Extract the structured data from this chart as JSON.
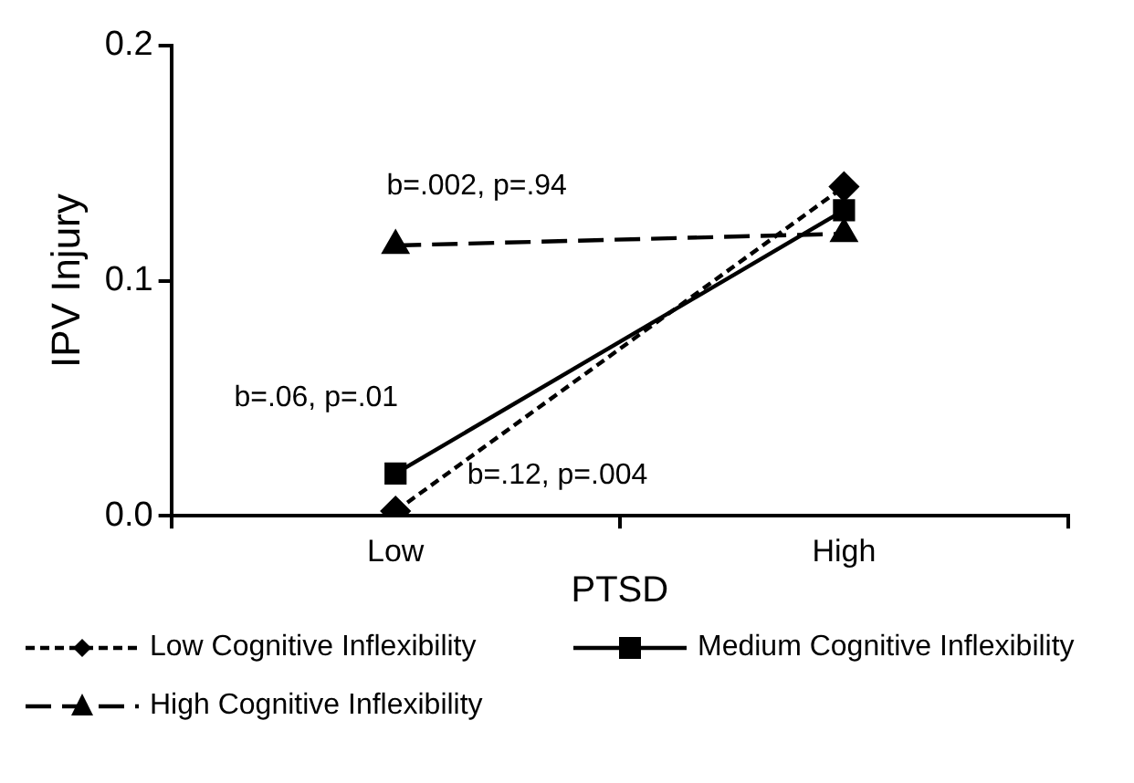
{
  "chart_data": {
    "type": "line",
    "xlabel": "PTSD",
    "ylabel": "IPV Injury",
    "categories": [
      "Low",
      "High"
    ],
    "ylim": [
      0,
      0.2
    ],
    "yticks": [
      {
        "value": 0,
        "label": "0.0"
      },
      0.1,
      0.2
    ],
    "grid": false,
    "legend": "bottom",
    "series": [
      {
        "name": "Low Cognitive Inflexibility",
        "color": "#000000",
        "marker": "diamond",
        "line_style": "dotted",
        "values": [
          0.002,
          0.14
        ]
      },
      {
        "name": "Medium Cognitive Inflexibility",
        "color": "#000000",
        "marker": "square",
        "line_style": "solid",
        "values": [
          0.018,
          0.13
        ]
      },
      {
        "name": "High Cognitive Inflexibility",
        "color": "#000000",
        "marker": "triangle",
        "line_style": "dashed",
        "values": [
          0.115,
          0.12
        ]
      }
    ],
    "annotations": [
      "b=.002, p=.94",
      "b=.06, p=.01",
      "b=.12, p=.004"
    ]
  }
}
